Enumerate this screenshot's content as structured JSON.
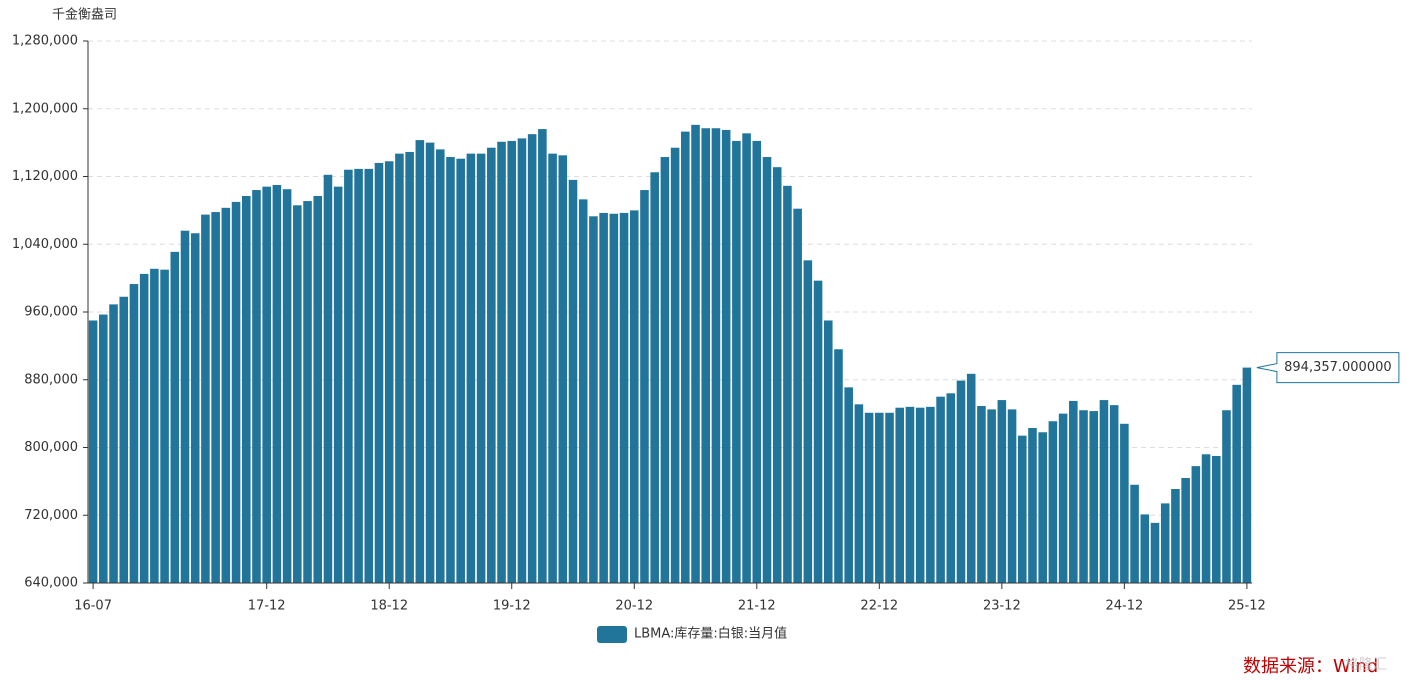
{
  "chart_data": {
    "type": "bar",
    "y_axis_label": "千金衡盎司",
    "legend_label": "LBMA:库存量:白银:当月值",
    "source": "数据来源：Wind",
    "watermark": "格隆汇",
    "color": "#21759b",
    "grid": true,
    "ylim": [
      640000,
      1280000
    ],
    "yticks": [
      {
        "value": 640000,
        "label": "640,000"
      },
      {
        "value": 720000,
        "label": "720,000"
      },
      {
        "value": 800000,
        "label": "800,000"
      },
      {
        "value": 880000,
        "label": "880,000"
      },
      {
        "value": 960000,
        "label": "960,000"
      },
      {
        "value": 1040000,
        "label": "1,040,000"
      },
      {
        "value": 1120000,
        "label": "1,120,000"
      },
      {
        "value": 1200000,
        "label": "1,200,000"
      },
      {
        "value": 1280000,
        "label": "1,280,000"
      }
    ],
    "categories": [
      "16-07",
      null,
      null,
      null,
      null,
      null,
      null,
      null,
      null,
      null,
      null,
      null,
      null,
      null,
      null,
      null,
      null,
      "17-12",
      null,
      null,
      null,
      null,
      null,
      null,
      null,
      null,
      null,
      null,
      null,
      "18-12",
      null,
      null,
      null,
      null,
      null,
      null,
      null,
      null,
      null,
      null,
      null,
      "19-12",
      null,
      null,
      null,
      null,
      null,
      null,
      null,
      null,
      null,
      null,
      null,
      "20-12",
      null,
      null,
      null,
      null,
      null,
      null,
      null,
      null,
      null,
      null,
      null,
      "21-12",
      null,
      null,
      null,
      null,
      null,
      null,
      null,
      null,
      null,
      null,
      null,
      "22-12",
      null,
      null,
      null,
      null,
      null,
      null,
      null,
      null,
      null,
      null,
      null,
      "23-12",
      null,
      null,
      null,
      null,
      null,
      null,
      null,
      null,
      null,
      null,
      null,
      "24-12",
      null,
      null,
      null,
      null,
      null,
      null,
      null,
      null,
      null,
      null,
      null,
      "25-12"
    ],
    "values": [
      950000,
      957000,
      969000,
      978000,
      993000,
      1005000,
      1011000,
      1010000,
      1031000,
      1056000,
      1053000,
      1075000,
      1078000,
      1083000,
      1090000,
      1097000,
      1104000,
      1108000,
      1110000,
      1105000,
      1086000,
      1091000,
      1097000,
      1122000,
      1108000,
      1128000,
      1129000,
      1129000,
      1136000,
      1138000,
      1147000,
      1149000,
      1163000,
      1160000,
      1152000,
      1143000,
      1141000,
      1147000,
      1147000,
      1154000,
      1161000,
      1162000,
      1165000,
      1170000,
      1176000,
      1147000,
      1145000,
      1116000,
      1093000,
      1073000,
      1077000,
      1076000,
      1077000,
      1080000,
      1104000,
      1125000,
      1143000,
      1154000,
      1173000,
      1181000,
      1177000,
      1177000,
      1175000,
      1162000,
      1171000,
      1162000,
      1143000,
      1131000,
      1109000,
      1082000,
      1021000,
      997000,
      950000,
      916000,
      871000,
      851000,
      841000,
      841000,
      841000,
      847000,
      848000,
      847000,
      848000,
      860000,
      864000,
      879000,
      887000,
      849000,
      845000,
      856000,
      845000,
      814000,
      823000,
      818000,
      831000,
      840000,
      855000,
      844000,
      843000,
      856000,
      850000,
      828000,
      756000,
      721000,
      711000,
      734000,
      751000,
      764000,
      778000,
      792000,
      790000,
      844000,
      874000,
      894357
    ],
    "value_labels": [
      null,
      null,
      null,
      null,
      null,
      null,
      null,
      null,
      null,
      null,
      null,
      null,
      null,
      null,
      null,
      null,
      null,
      null,
      null,
      null,
      null,
      null,
      null,
      null,
      null,
      null,
      null,
      null,
      null,
      null,
      null,
      null,
      null,
      null,
      null,
      null,
      null,
      null,
      null,
      null,
      null,
      null,
      null,
      null,
      null,
      null,
      null,
      null,
      null,
      null,
      null,
      null,
      null,
      null,
      null,
      null,
      null,
      null,
      null,
      null,
      null,
      null,
      null,
      null,
      null,
      null,
      null,
      null,
      null,
      null,
      null,
      null,
      null,
      null,
      null,
      null,
      null,
      null,
      null,
      null,
      null,
      null,
      null,
      null,
      null,
      null,
      null,
      null,
      null,
      null,
      null,
      null,
      null,
      null,
      null,
      null,
      null,
      null,
      null,
      null,
      null,
      null,
      null,
      null,
      null,
      null,
      null,
      null,
      null,
      null,
      null,
      null,
      null,
      "894,357.000000"
    ]
  }
}
